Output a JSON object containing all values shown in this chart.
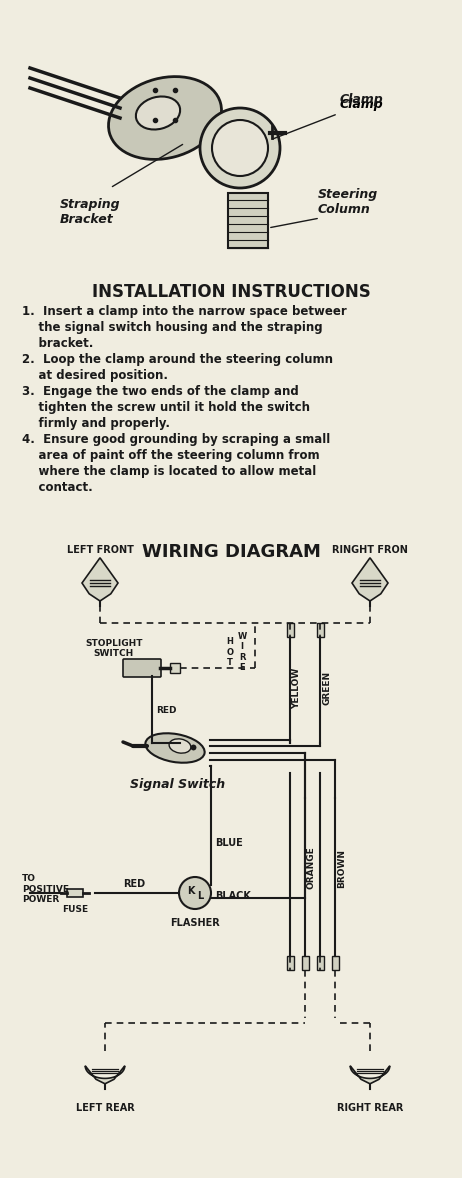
{
  "bg_color": "#f0ede0",
  "title_text": "INSTALLATION INSTRUCTIONS",
  "instructions": [
    "1.  Insert a clamp into the narrow space between\n    the signal switch housing and the straping\n    bracket.",
    "2.  Loop the clamp around the steering column\n    at desired position.",
    "3.  Engage the two ends of the clamp and\n    tighten the screw until it hold the switch\n    firmly and properly.",
    "4.  Ensure good grounding by scraping a small\n    area of paint off the steering column from\n    where the clamp is located to allow metal\n    contact."
  ],
  "wiring_title": "WIRING DIAGRAM",
  "label_left_front": "LEFT FRONT",
  "label_right_front": "RINGHT FRON",
  "label_left_rear": "LEFT REAR",
  "label_right_rear": "RIGHT REAR",
  "label_stoplight": "STOPLIGHT\nSWITCH",
  "label_hot_wire": "HOT\nWIRE",
  "label_red": "RED",
  "label_yellow": "YELLOW",
  "label_green": "GREEN",
  "label_signal_switch": "Signal Switch",
  "label_to_positive": "TO\nPOSITIVE\nPOWER",
  "label_fuse": "FUSE",
  "label_blue": "BLUE",
  "label_black": "BLACK",
  "label_flasher": "FLASHER",
  "label_orange": "ORANGE",
  "label_brown": "BROWN",
  "line_color": "#1a1a1a",
  "dashed_color": "#1a1a1a"
}
